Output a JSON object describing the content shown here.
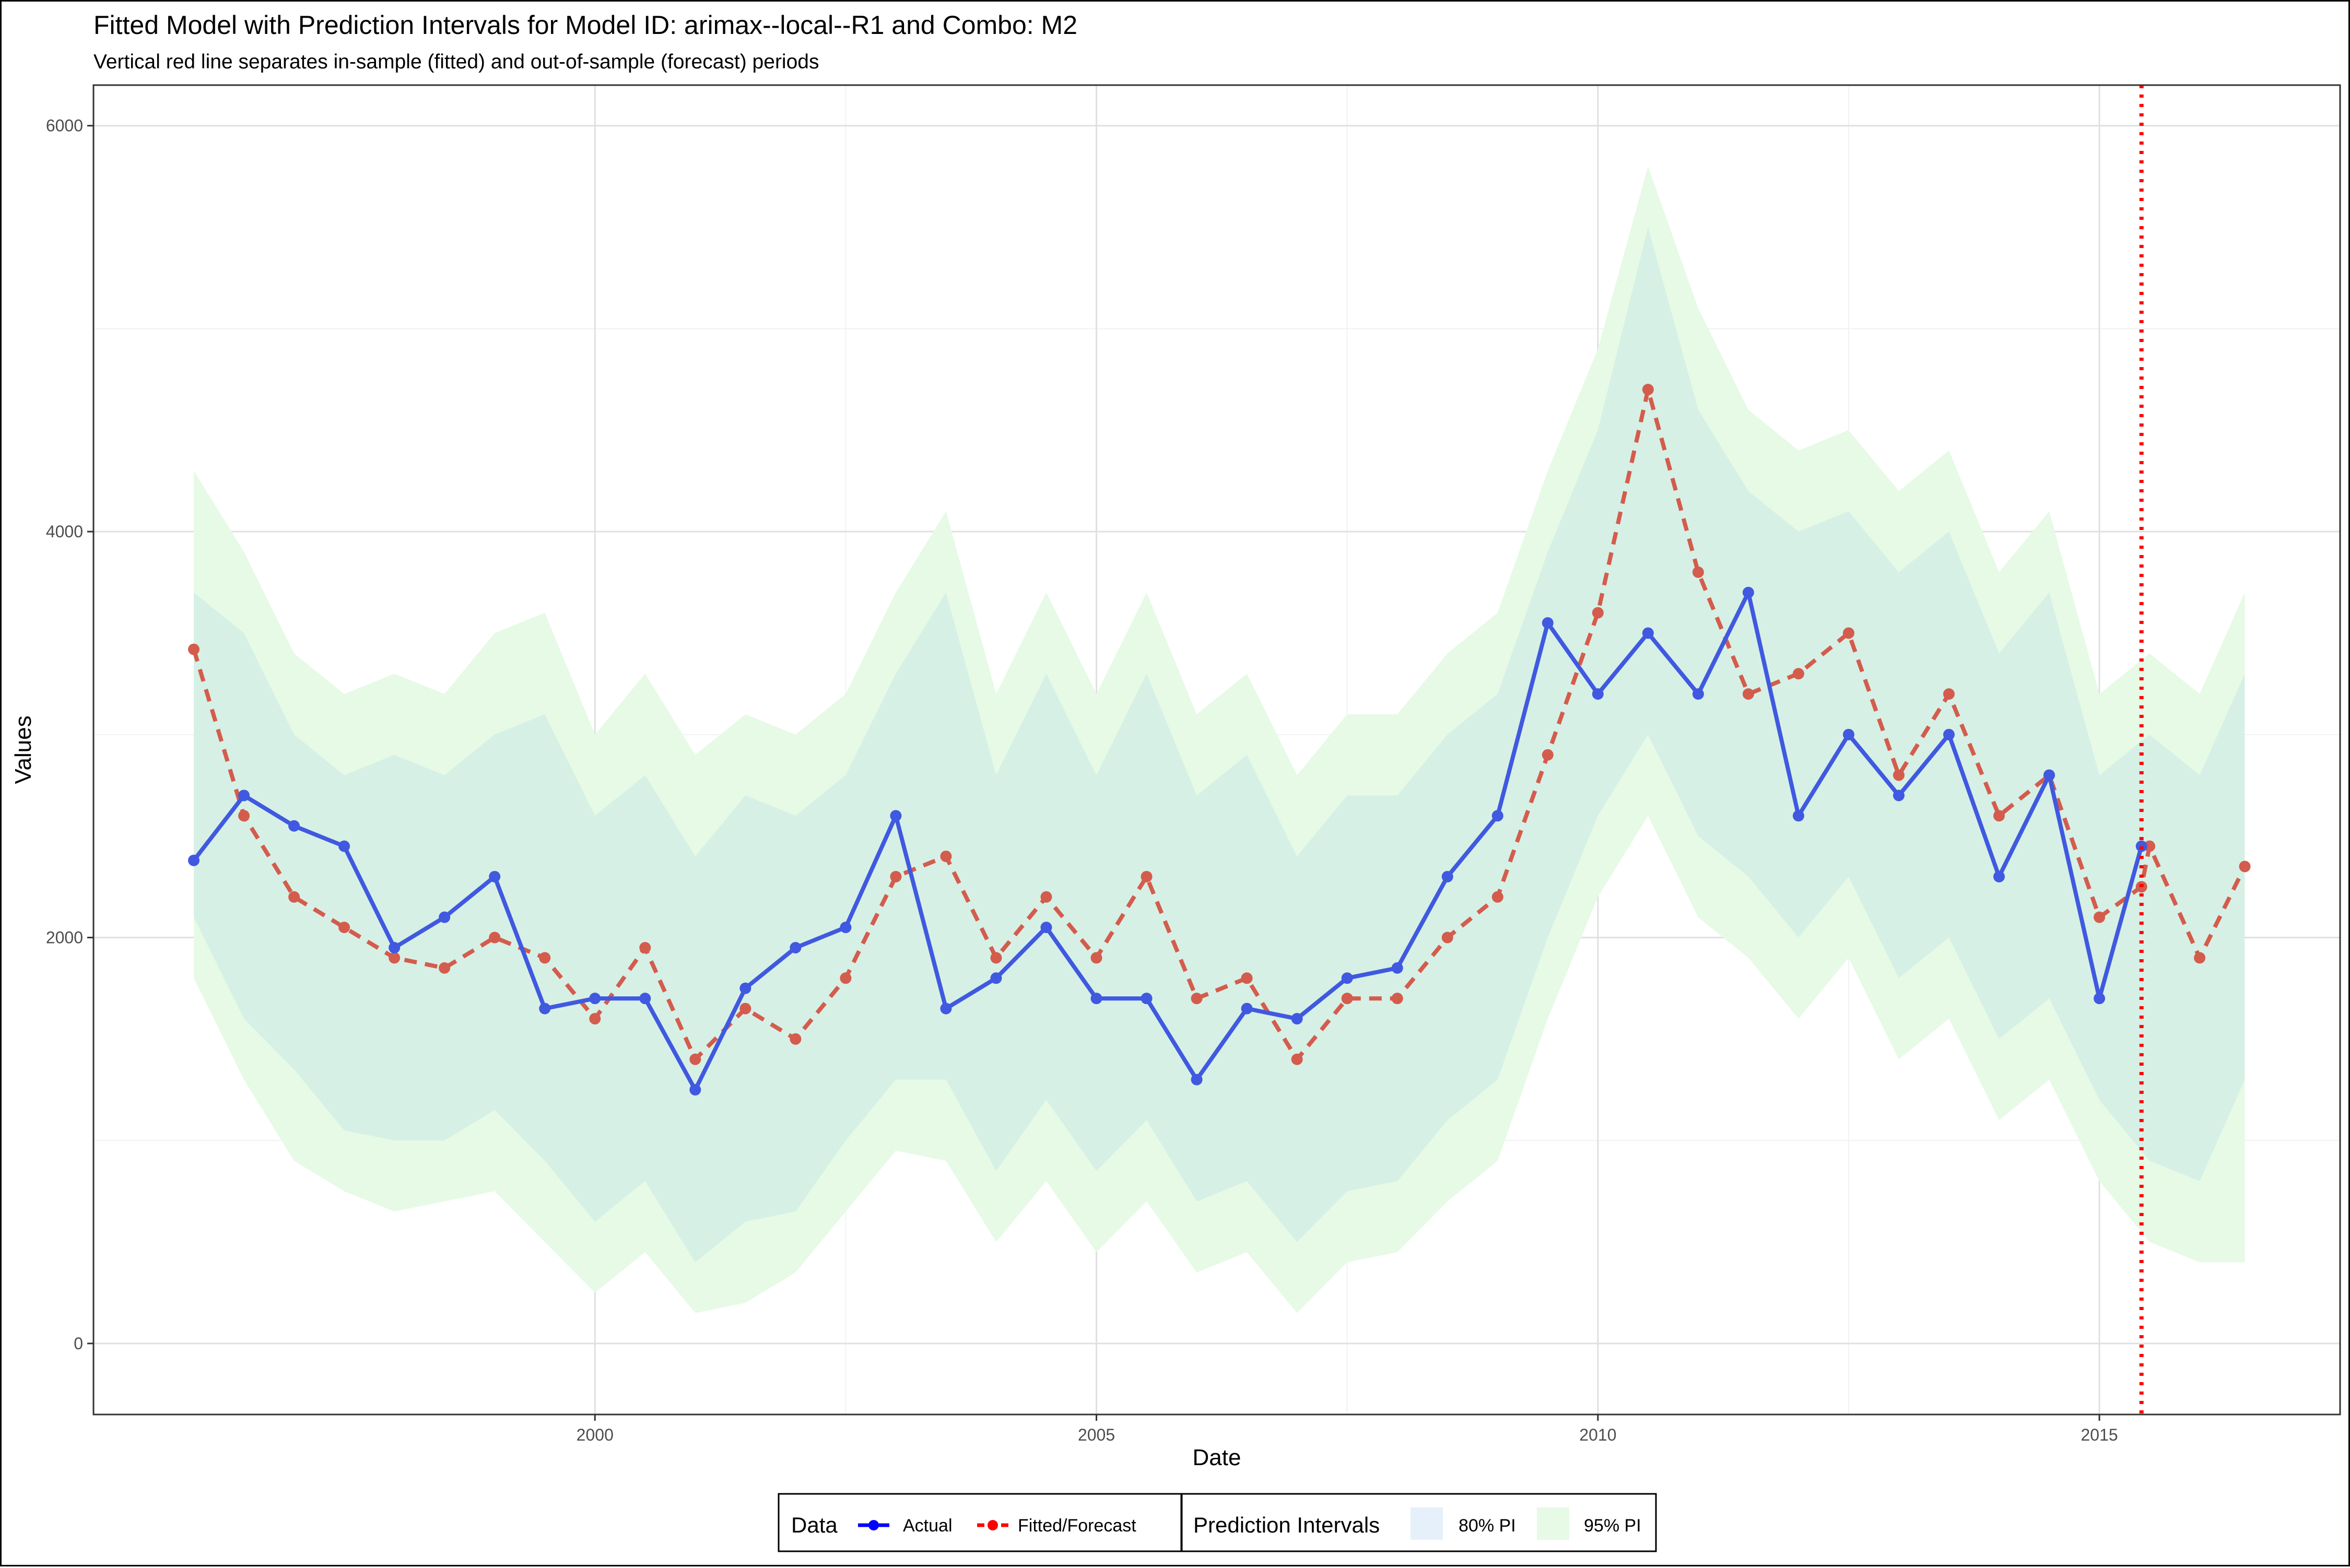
{
  "chart_data": {
    "type": "line",
    "title": "Fitted Model with Prediction Intervals for Model ID: arimax--local--R1 and Combo: M2",
    "subtitle": "Vertical red line separates in-sample (fitted) and out-of-sample (forecast) periods",
    "xlabel": "Date",
    "ylabel": "Values",
    "xlim": [
      1995.0,
      2017.4
    ],
    "ylim": [
      -350,
      6200
    ],
    "x_ticks": [
      {
        "value": 2000,
        "label": "2000"
      },
      {
        "value": 2005,
        "label": "2005"
      },
      {
        "value": 2010,
        "label": "2010"
      },
      {
        "value": 2015,
        "label": "2015"
      }
    ],
    "y_ticks": [
      {
        "value": 0,
        "label": "0"
      },
      {
        "value": 2000,
        "label": "2000"
      },
      {
        "value": 4000,
        "label": "4000"
      },
      {
        "value": 6000,
        "label": "6000"
      }
    ],
    "split_date": 2015.42,
    "grid": true,
    "legend_position": "bottom",
    "colors": {
      "actual": "#0000ff",
      "actual_line": "#4059e0",
      "fitted": "#d45c4c",
      "split_line": "#ff0000",
      "pi80": "#d6f0e6",
      "pi95": "#e6fae6",
      "grid_major": "#e0e0e0",
      "grid_minor": "#f2f2f2"
    },
    "series": [
      {
        "name": "Actual",
        "x": [
          1996.0,
          1996.5,
          1997.0,
          1997.5,
          1998.0,
          1998.5,
          1999.0,
          1999.5,
          2000.0,
          2000.5,
          2001.0,
          2001.5,
          2002.0,
          2002.5,
          2003.0,
          2003.5,
          2004.0,
          2004.5,
          2005.0,
          2005.5,
          2006.0,
          2006.5,
          2007.0,
          2007.5,
          2008.0,
          2008.5,
          2009.0,
          2009.5,
          2010.0,
          2010.5,
          2011.0,
          2011.5,
          2012.0,
          2012.5,
          2013.0,
          2013.5,
          2014.0,
          2014.5,
          2015.0,
          2015.42
        ],
        "values": [
          2380,
          2700,
          2550,
          2450,
          1950,
          2100,
          2300,
          1650,
          1700,
          1700,
          1250,
          1750,
          1950,
          2050,
          2600,
          1650,
          1800,
          2050,
          1700,
          1700,
          1300,
          1650,
          1600,
          1800,
          1850,
          2300,
          2600,
          3550,
          3200,
          3500,
          3200,
          3700,
          2600,
          3000,
          2700,
          3000,
          2300,
          2800,
          1700,
          2450
        ]
      },
      {
        "name": "Fitted/Forecast",
        "x": [
          1996.0,
          1996.5,
          1997.0,
          1997.5,
          1998.0,
          1998.5,
          1999.0,
          1999.5,
          2000.0,
          2000.5,
          2001.0,
          2001.5,
          2002.0,
          2002.5,
          2003.0,
          2003.5,
          2004.0,
          2004.5,
          2005.0,
          2005.5,
          2006.0,
          2006.5,
          2007.0,
          2007.5,
          2008.0,
          2008.5,
          2009.0,
          2009.5,
          2010.0,
          2010.5,
          2011.0,
          2011.5,
          2012.0,
          2012.5,
          2013.0,
          2013.5,
          2014.0,
          2014.5,
          2015.0,
          2015.42,
          2015.5,
          2016.0,
          2016.45
        ],
        "values": [
          3420,
          2600,
          2200,
          2050,
          1900,
          1850,
          2000,
          1900,
          1600,
          1950,
          1400,
          1650,
          1500,
          1800,
          2300,
          2400,
          1900,
          2200,
          1900,
          2300,
          1700,
          1800,
          1400,
          1700,
          1700,
          2000,
          2200,
          2900,
          3600,
          4700,
          3800,
          3200,
          3300,
          3500,
          2800,
          3200,
          2600,
          2800,
          2100,
          2250,
          2450,
          1900,
          2350
        ]
      }
    ],
    "intervals": {
      "x": [
        1996.0,
        1996.5,
        1997.0,
        1997.5,
        1998.0,
        1998.5,
        1999.0,
        1999.5,
        2000.0,
        2000.5,
        2001.0,
        2001.5,
        2002.0,
        2002.5,
        2003.0,
        2003.5,
        2004.0,
        2004.5,
        2005.0,
        2005.5,
        2006.0,
        2006.5,
        2007.0,
        2007.5,
        2008.0,
        2008.5,
        2009.0,
        2009.5,
        2010.0,
        2010.5,
        2011.0,
        2011.5,
        2012.0,
        2012.5,
        2013.0,
        2013.5,
        2014.0,
        2014.5,
        2015.0,
        2015.5,
        2016.0,
        2016.45
      ],
      "pi80_low": [
        2100,
        1600,
        1350,
        1050,
        1000,
        1000,
        1150,
        900,
        600,
        800,
        400,
        600,
        650,
        1000,
        1300,
        1300,
        850,
        1200,
        850,
        1100,
        700,
        800,
        500,
        750,
        800,
        1100,
        1300,
        2000,
        2600,
        3000,
        2500,
        2300,
        2000,
        2300,
        1800,
        2000,
        1500,
        1700,
        1200,
        900,
        800,
        1300
      ],
      "pi80_high": [
        3700,
        3500,
        3000,
        2800,
        2900,
        2800,
        3000,
        3100,
        2600,
        2800,
        2400,
        2700,
        2600,
        2800,
        3300,
        3700,
        2800,
        3300,
        2800,
        3300,
        2700,
        2900,
        2400,
        2700,
        2700,
        3000,
        3200,
        3900,
        4500,
        5500,
        4600,
        4200,
        4000,
        4100,
        3800,
        4000,
        3400,
        3700,
        2800,
        3000,
        2800,
        3300
      ],
      "pi95_low": [
        1800,
        1300,
        900,
        750,
        650,
        700,
        750,
        500,
        250,
        450,
        150,
        200,
        350,
        650,
        950,
        900,
        500,
        800,
        450,
        700,
        350,
        450,
        150,
        400,
        450,
        700,
        900,
        1600,
        2200,
        2600,
        2100,
        1900,
        1600,
        1900,
        1400,
        1600,
        1100,
        1300,
        800,
        500,
        400,
        400
      ],
      "pi95_high": [
        4300,
        3900,
        3400,
        3200,
        3300,
        3200,
        3500,
        3600,
        3000,
        3300,
        2900,
        3100,
        3000,
        3200,
        3700,
        4100,
        3200,
        3700,
        3200,
        3700,
        3100,
        3300,
        2800,
        3100,
        3100,
        3400,
        3600,
        4300,
        4900,
        5800,
        5100,
        4600,
        4400,
        4500,
        4200,
        4400,
        3800,
        4100,
        3200,
        3400,
        3200,
        3700
      ]
    },
    "legend": {
      "data_title": "Data",
      "data_items": [
        "Actual",
        "Fitted/Forecast"
      ],
      "pi_title": "Prediction Intervals",
      "pi_items": [
        "80% PI",
        "95% PI"
      ]
    }
  }
}
